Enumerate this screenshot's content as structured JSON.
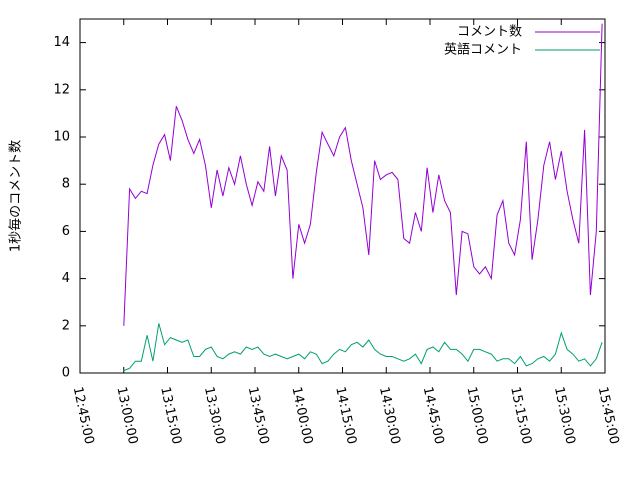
{
  "chart_data": {
    "type": "line",
    "ylabel": "1秒毎のコメント数",
    "x": [
      "13:00:00",
      "13:02:00",
      "13:04:00",
      "13:06:00",
      "13:08:00",
      "13:10:00",
      "13:12:00",
      "13:14:00",
      "13:16:00",
      "13:18:00",
      "13:20:00",
      "13:22:00",
      "13:24:00",
      "13:26:00",
      "13:28:00",
      "13:30:00",
      "13:32:00",
      "13:34:00",
      "13:36:00",
      "13:38:00",
      "13:40:00",
      "13:42:00",
      "13:44:00",
      "13:46:00",
      "13:48:00",
      "13:50:00",
      "13:52:00",
      "13:54:00",
      "13:56:00",
      "13:58:00",
      "14:00:00",
      "14:02:00",
      "14:04:00",
      "14:06:00",
      "14:08:00",
      "14:10:00",
      "14:12:00",
      "14:14:00",
      "14:16:00",
      "14:18:00",
      "14:20:00",
      "14:22:00",
      "14:24:00",
      "14:26:00",
      "14:28:00",
      "14:30:00",
      "14:32:00",
      "14:34:00",
      "14:36:00",
      "14:38:00",
      "14:40:00",
      "14:42:00",
      "14:44:00",
      "14:46:00",
      "14:48:00",
      "14:50:00",
      "14:52:00",
      "14:54:00",
      "14:56:00",
      "14:58:00",
      "15:00:00",
      "15:02:00",
      "15:04:00",
      "15:06:00",
      "15:08:00",
      "15:10:00",
      "15:12:00",
      "15:14:00",
      "15:16:00",
      "15:18:00",
      "15:20:00",
      "15:22:00",
      "15:24:00",
      "15:26:00",
      "15:28:00",
      "15:30:00",
      "15:32:00",
      "15:34:00",
      "15:36:00",
      "15:38:00",
      "15:40:00",
      "15:42:00",
      "15:44:00"
    ],
    "series": [
      {
        "name": "コメント数",
        "color": "#9400d3",
        "values": [
          2.0,
          7.8,
          7.4,
          7.7,
          7.6,
          8.8,
          9.7,
          10.1,
          9.0,
          11.3,
          10.7,
          9.9,
          9.3,
          9.9,
          8.8,
          7.0,
          8.6,
          7.5,
          8.7,
          8.0,
          9.2,
          8.0,
          7.1,
          8.1,
          7.7,
          9.6,
          7.5,
          9.2,
          8.6,
          4.0,
          6.3,
          5.5,
          6.3,
          8.5,
          10.2,
          9.7,
          9.2,
          10.0,
          10.4,
          9.0,
          8.0,
          7.0,
          5.0,
          9.0,
          8.2,
          8.4,
          8.5,
          8.2,
          5.7,
          5.5,
          6.8,
          6.0,
          8.7,
          6.8,
          8.4,
          7.3,
          6.8,
          3.3,
          6.0,
          5.9,
          4.5,
          4.2,
          4.5,
          4.0,
          6.7,
          7.3,
          5.5,
          5.0,
          6.5,
          9.8,
          4.8,
          6.5,
          8.8,
          9.8,
          8.2,
          9.4,
          7.7,
          6.5,
          5.5,
          10.3,
          3.3,
          6.0,
          14.8
        ]
      },
      {
        "name": "英語コメント",
        "color": "#009e73",
        "values": [
          0.1,
          0.2,
          0.5,
          0.5,
          1.6,
          0.5,
          2.1,
          1.2,
          1.5,
          1.4,
          1.3,
          1.4,
          0.7,
          0.7,
          1.0,
          1.1,
          0.7,
          0.6,
          0.8,
          0.9,
          0.8,
          1.1,
          1.0,
          1.1,
          0.8,
          0.7,
          0.8,
          0.7,
          0.6,
          0.7,
          0.8,
          0.6,
          0.9,
          0.8,
          0.4,
          0.5,
          0.8,
          1.0,
          0.9,
          1.2,
          1.3,
          1.1,
          1.4,
          1.0,
          0.8,
          0.7,
          0.7,
          0.6,
          0.5,
          0.6,
          0.8,
          0.4,
          1.0,
          1.1,
          0.9,
          1.3,
          1.0,
          1.0,
          0.8,
          0.5,
          1.0,
          1.0,
          0.9,
          0.8,
          0.5,
          0.6,
          0.6,
          0.4,
          0.7,
          0.3,
          0.4,
          0.6,
          0.7,
          0.5,
          0.8,
          1.7,
          1.0,
          0.8,
          0.5,
          0.6,
          0.3,
          0.6,
          1.3
        ]
      }
    ],
    "xlim": [
      "12:45:00",
      "15:45:00"
    ],
    "xticks": [
      "12:45:00",
      "13:00:00",
      "13:15:00",
      "13:30:00",
      "13:45:00",
      "14:00:00",
      "14:15:00",
      "14:30:00",
      "14:45:00",
      "15:00:00",
      "15:15:00",
      "15:30:00",
      "15:45:00"
    ],
    "ylim": [
      0,
      15
    ],
    "yticks": [
      0,
      2,
      4,
      6,
      8,
      10,
      12,
      14
    ],
    "legend": "top-right"
  }
}
